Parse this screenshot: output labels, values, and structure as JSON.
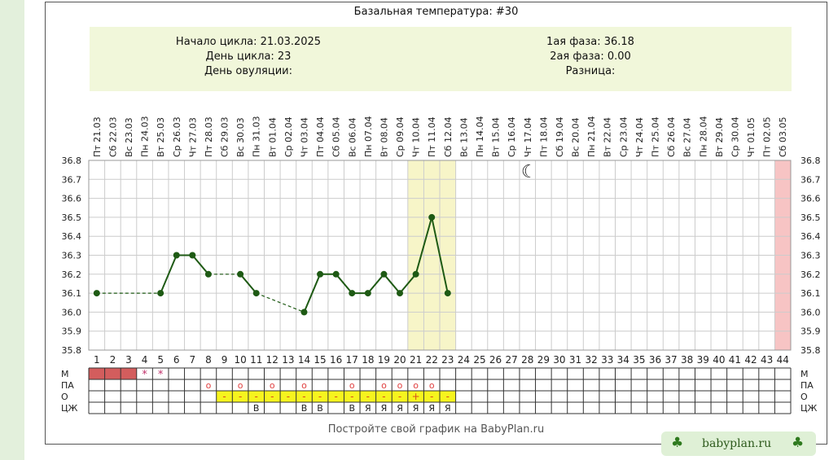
{
  "title": "Базальная температура: #30",
  "info": {
    "cycle_start": "Начало цикла: 21.03.2025",
    "cycle_day": "День цикла: 23",
    "ovulation_day": "День овуляции:",
    "phase1": "1ая фаза: 36.18",
    "phase2": "2ая фаза: 0.00",
    "difference": "Разница:"
  },
  "footer": "Постройте свой график на BabyPlan.ru",
  "brand": "babyplan.ru",
  "colors": {
    "line": "#1e5a14",
    "grid": "#cccccc",
    "info_bg": "#f1f7da",
    "highlight": "#f7f5c8",
    "end_day": "#f7c4c4",
    "menses": "#d35d5d",
    "mucus_bg": "#f6f41e"
  },
  "icons": {
    "moon": "crescent-moon-icon",
    "clover": "clover-icon"
  },
  "row_labels": [
    "М",
    "ПА",
    "О",
    "ЦЖ"
  ],
  "chart_data": {
    "type": "line",
    "dates": [
      "Пт 21.03",
      "Сб 22.03",
      "Вс 23.03",
      "Пн 24.03",
      "Вт 25.03",
      "Ср 26.03",
      "Чт 27.03",
      "Пт 28.03",
      "Сб 29.03",
      "Вс 30.03",
      "Пн 31.03",
      "Вт 01.04",
      "Ср 02.04",
      "Чт 03.04",
      "Пт 04.04",
      "Сб 05.04",
      "Вс 06.04",
      "Пн 07.04",
      "Вт 08.04",
      "Ср 09.04",
      "Чт 10.04",
      "Пт 11.04",
      "Сб 12.04",
      "Вс 13.04",
      "Пн 14.04",
      "Вт 15.04",
      "Ср 16.04",
      "Чт 17.04",
      "Пт 18.04",
      "Сб 19.04",
      "Вс 20.04",
      "Пн 21.04",
      "Вт 22.04",
      "Ср 23.04",
      "Чт 24.04",
      "Пт 25.04",
      "Сб 26.04",
      "Вс 27.04",
      "Пн 28.04",
      "Вт 29.04",
      "Ср 30.04",
      "Чт 01.05",
      "Пт 02.05",
      "Сб 03.05"
    ],
    "day_labels": [
      "1",
      "2",
      "3",
      "4",
      "5",
      "6",
      "7",
      "8",
      "9",
      "10",
      "11",
      "12",
      "13",
      "14",
      "15",
      "16",
      "17",
      "18",
      "19",
      "20",
      "21",
      "22",
      "23",
      "24",
      "25",
      "26",
      "27",
      "28",
      "29",
      "30",
      "31",
      "32",
      "33",
      "34",
      "35",
      "36",
      "37",
      "38",
      "39",
      "40",
      "41",
      "42",
      "43",
      "44"
    ],
    "y_ticks": [
      "36.8",
      "36.7",
      "36.6",
      "36.5",
      "36.4",
      "36.3",
      "36.2",
      "36.1",
      "36.0",
      "35.9",
      "35.8"
    ],
    "ylim": [
      35.8,
      36.8
    ],
    "points": [
      {
        "day": 1,
        "temp": 36.1
      },
      {
        "day": 5,
        "temp": 36.1
      },
      {
        "day": 6,
        "temp": 36.3
      },
      {
        "day": 7,
        "temp": 36.3
      },
      {
        "day": 8,
        "temp": 36.2
      },
      {
        "day": 10,
        "temp": 36.2
      },
      {
        "day": 11,
        "temp": 36.1
      },
      {
        "day": 14,
        "temp": 36.0
      },
      {
        "day": 15,
        "temp": 36.2
      },
      {
        "day": 16,
        "temp": 36.2
      },
      {
        "day": 17,
        "temp": 36.1
      },
      {
        "day": 18,
        "temp": 36.1
      },
      {
        "day": 19,
        "temp": 36.2
      },
      {
        "day": 20,
        "temp": 36.1
      },
      {
        "day": 21,
        "temp": 36.2
      },
      {
        "day": 22,
        "temp": 36.5
      },
      {
        "day": 23,
        "temp": 36.1
      }
    ],
    "highlight_days": [
      21,
      23
    ],
    "end_day": 44,
    "moon_day": 28,
    "menses_days": [
      1,
      2,
      3
    ],
    "menses_marks": [
      {
        "day": 4,
        "mark": "*"
      },
      {
        "day": 5,
        "mark": "*"
      }
    ],
    "pa_days": [
      8,
      10,
      12,
      14,
      17,
      19,
      20,
      21,
      22
    ],
    "pa_mark": "о",
    "o_days": [
      9,
      10,
      11,
      12,
      13,
      14,
      15,
      16,
      17,
      18,
      19,
      20,
      21,
      22,
      23
    ],
    "o_marks": [
      "-",
      "-",
      "-",
      "-",
      "-",
      "-",
      "-",
      "-",
      "-",
      "-",
      "-",
      "-",
      "+",
      "-",
      "-"
    ],
    "czh_marks": [
      {
        "day": 11,
        "mark": "В"
      },
      {
        "day": 14,
        "mark": "В"
      },
      {
        "day": 15,
        "mark": "В"
      },
      {
        "day": 17,
        "mark": "В"
      },
      {
        "day": 18,
        "mark": "Я"
      },
      {
        "day": 19,
        "mark": "Я"
      },
      {
        "day": 20,
        "mark": "Я"
      },
      {
        "day": 21,
        "mark": "Я"
      },
      {
        "day": 22,
        "mark": "Я"
      },
      {
        "day": 23,
        "mark": "Я"
      }
    ]
  }
}
